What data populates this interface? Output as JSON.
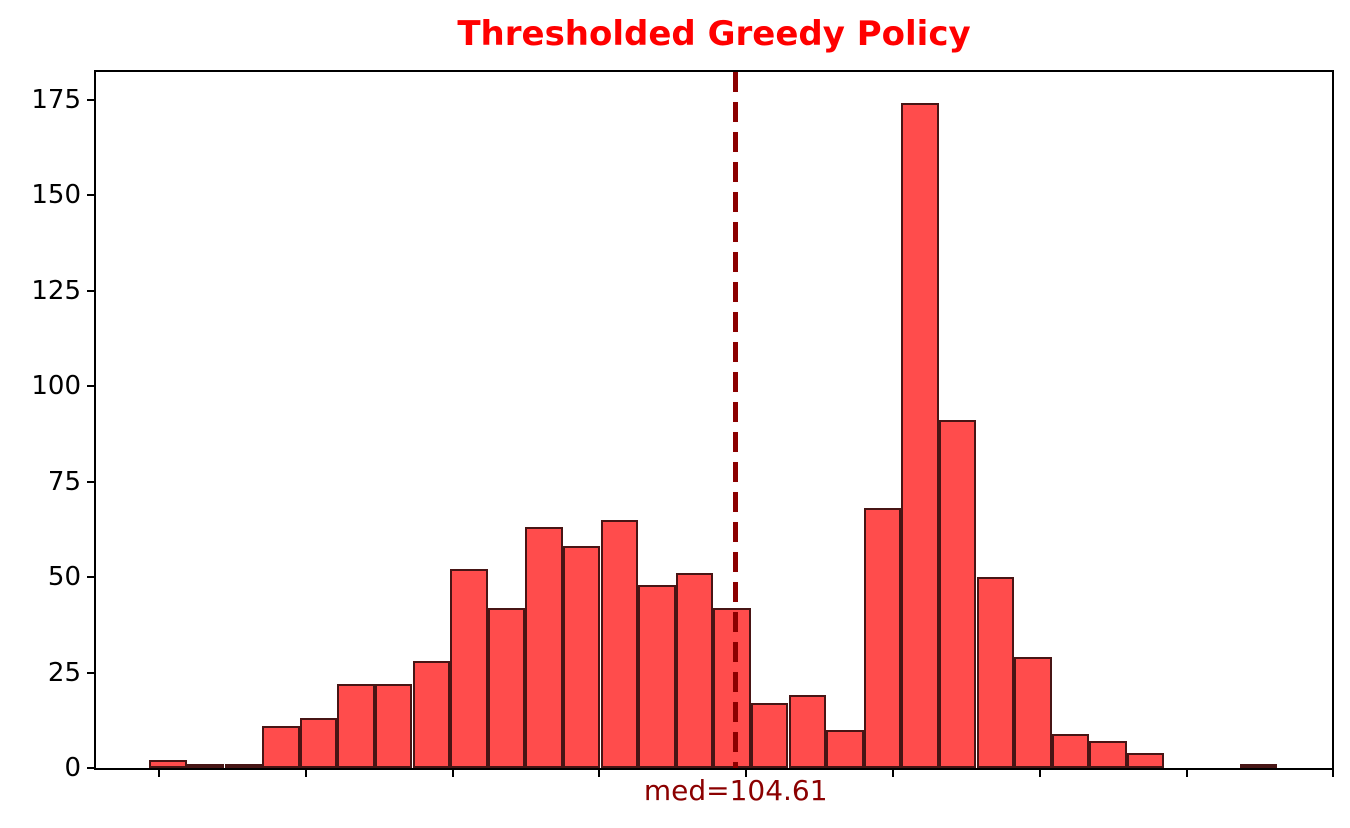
{
  "chart_data": {
    "type": "bar",
    "subtype": "histogram",
    "title": "Thresholded Greedy Policy",
    "bins": 30,
    "values": [
      2,
      1,
      1,
      11,
      13,
      22,
      22,
      28,
      52,
      42,
      63,
      58,
      65,
      48,
      51,
      42,
      17,
      19,
      10,
      68,
      174,
      91,
      50,
      29,
      9,
      7,
      4,
      0,
      0,
      1
    ],
    "total_samples": 1000,
    "ylim": [
      0,
      182.2
    ],
    "yticks": [
      0,
      25,
      50,
      75,
      100,
      125,
      150,
      175
    ],
    "xticks_labeled": false,
    "xtick_count": 9,
    "grid": false,
    "legend": "none",
    "median": 104.61,
    "median_annotation": "med=104.61"
  },
  "colors": {
    "title": "#ff0000",
    "bar_fill": "#ff4d4d",
    "bar_edge": "#4c1717",
    "median_line": "#8b0000",
    "median_label": "#8b0000",
    "axis": "#000000",
    "background": "#ffffff"
  }
}
